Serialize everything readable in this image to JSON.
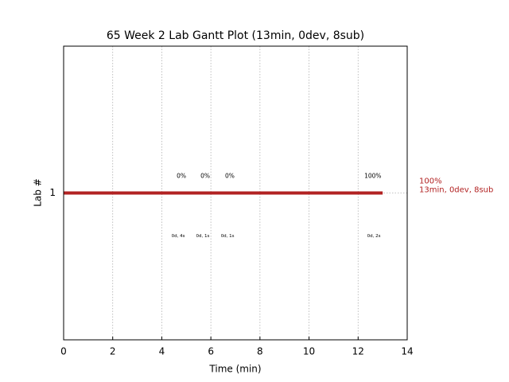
{
  "chart_data": {
    "type": "gantt",
    "title": "65 Week 2 Lab Gantt Plot (13min, 0dev, 8sub)",
    "xlabel": "Time (min)",
    "ylabel": "Lab #",
    "categories": [
      "1"
    ],
    "start": [
      0
    ],
    "end": [
      13
    ],
    "color": "#b22222",
    "xlim": [
      0,
      14
    ],
    "xticks": [
      0,
      2,
      4,
      6,
      8,
      10,
      12,
      14
    ],
    "ylim": [
      0,
      2
    ],
    "yticks": [
      1
    ],
    "grid": true,
    "annotations": [
      {
        "x": 4.8,
        "label": "0%"
      },
      {
        "x": 5.77,
        "label": "0%"
      },
      {
        "x": 6.77,
        "label": "0%"
      },
      {
        "x": 12.6,
        "label": "100%"
      }
    ],
    "annotations_below": [
      {
        "x": 4.67,
        "label": "0d, 4s"
      },
      {
        "x": 5.67,
        "label": "0d, 1s"
      },
      {
        "x": 6.68,
        "label": "0d, 1s"
      },
      {
        "x": 12.64,
        "label": "0d, 2s"
      }
    ],
    "side_labels": [
      "100%",
      "13min, 0dev, 8sub"
    ]
  }
}
